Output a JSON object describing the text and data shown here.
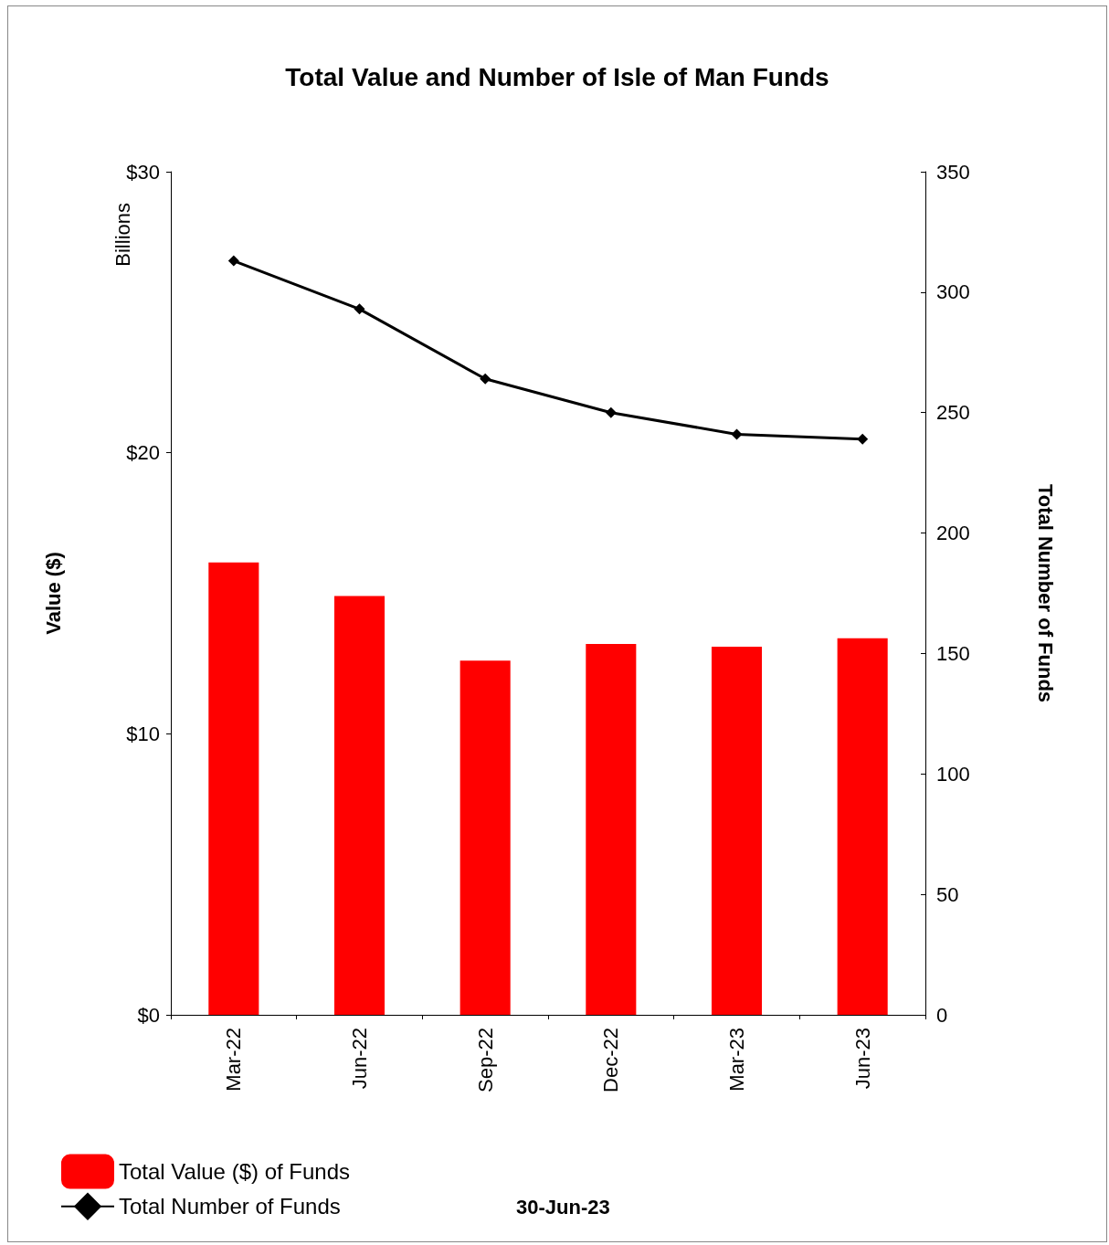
{
  "chart_data": {
    "type": "bar",
    "title": "Total Value and Number of Isle of Man Funds",
    "ylabel": "Value ($)",
    "y2label": "Total Number of Funds",
    "annotations": [
      "Billions",
      "30-Jun-23"
    ],
    "categories": [
      "Mar-22",
      "Jun-22",
      "Sep-22",
      "Dec-22",
      "Mar-23",
      "Jun-23"
    ],
    "series": [
      {
        "name": "Total Value ($) of Funds",
        "color": "#ff0000",
        "values": [
          16.1,
          14.9,
          12.6,
          13.2,
          13.1,
          13.4
        ]
      },
      {
        "name": "Total Number of Funds",
        "type": "line",
        "axis": "y2",
        "color": "#000000",
        "marker": "diamond",
        "values": [
          313,
          293,
          264,
          250,
          241,
          239
        ]
      }
    ],
    "ylim": [
      0,
      30
    ],
    "yticks": [
      {
        "value": 0,
        "label": "$0"
      },
      {
        "value": 10,
        "label": "$10"
      },
      {
        "value": 20,
        "label": "$20"
      },
      {
        "value": 30,
        "label": "$30"
      }
    ],
    "y2lim": [
      0,
      350
    ],
    "y2ticks": [
      0,
      50,
      100,
      150,
      200,
      250,
      300,
      350
    ],
    "grid": false,
    "legend": "bottom left"
  }
}
